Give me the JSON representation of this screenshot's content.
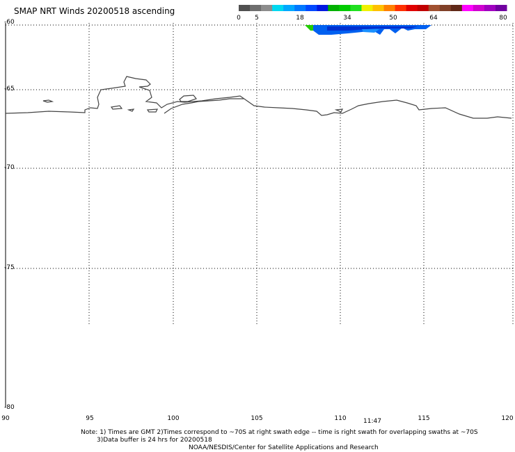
{
  "title": "SMAP NRT Winds 20200518 ascending",
  "colorbar": {
    "labels": [
      "0",
      "5",
      "18",
      "34",
      "50",
      "64",
      "80"
    ],
    "colors": [
      "#505050",
      "#6e6e6e",
      "#8c8c8c",
      "#00d8f0",
      "#00a8ff",
      "#0078ff",
      "#0048ff",
      "#0018e0",
      "#00b000",
      "#00cc00",
      "#20e020",
      "#f0f000",
      "#ffc000",
      "#ff8000",
      "#ff3000",
      "#e00000",
      "#c00000",
      "#a05030",
      "#804028",
      "#602818",
      "#ff00ff",
      "#d000d0",
      "#a000c0",
      "#7000a0"
    ]
  },
  "lat_labels": [
    "-60",
    "-65",
    "-70",
    "-75",
    "-80"
  ],
  "lon_labels": [
    "90",
    "95",
    "100",
    "105",
    "110",
    "115",
    "120"
  ],
  "time_label": "11:47",
  "notes": {
    "line1": "Note: 1) Times are GMT 2)Times correspond to ~70S at right swath edge -- time is right swath for overlapping swaths at ~70S",
    "line2": "3)Data buffer is 24 hrs for 20200518",
    "line3": "NOAA/NESDIS/Center for Satellite Applications and Research"
  }
}
